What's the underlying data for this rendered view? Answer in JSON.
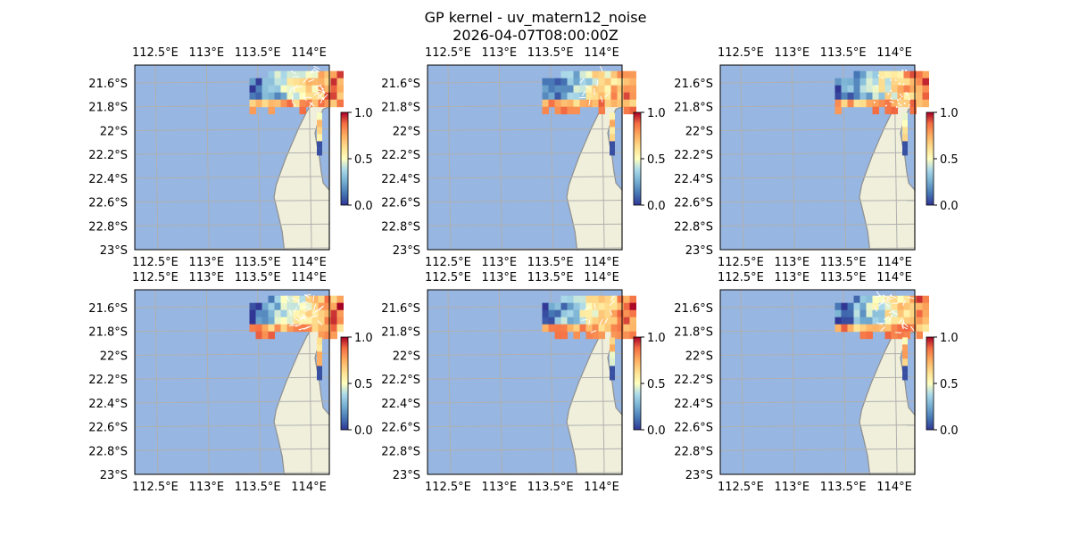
{
  "figure": {
    "title": "GP kernel - uv_matern12_noise",
    "subtitle": "2026-04-07T08:00:00Z"
  },
  "colors": {
    "ocean": "#97b6e1",
    "land": "#efefdb",
    "coast": "#8f8f8f",
    "grid": "#b0b0b0",
    "frame": "#000000",
    "arrow": "#ffffff"
  },
  "chart_data": [
    {
      "type": "heatmap",
      "panel": 1,
      "xlim": [
        112.3,
        114.2
      ],
      "ylim": [
        -23.0,
        -21.45
      ],
      "x_ticks": [
        "112.5°E",
        "113°E",
        "113.5°E",
        "114°E"
      ],
      "x_tick_values": [
        112.5,
        113.0,
        113.5,
        114.0
      ],
      "y_ticks": [
        "21.6°S",
        "21.8°S",
        "22°S",
        "22.2°S",
        "22.4°S",
        "22.6°S",
        "22.8°S",
        "23°S"
      ],
      "y_tick_values": [
        -21.6,
        -21.8,
        -22.0,
        -22.2,
        -22.4,
        -22.6,
        -22.8,
        -23.0
      ],
      "colorbar": {
        "range": [
          0.0,
          1.0
        ],
        "ticks": [
          "0.0",
          "0.5",
          "1.0"
        ],
        "colormap": "RdYlBu_r"
      },
      "vectors": "dense"
    },
    {
      "type": "heatmap",
      "panel": 2,
      "xlim": [
        112.3,
        114.2
      ],
      "ylim": [
        -23.0,
        -21.45
      ],
      "x_ticks": [
        "112.5°E",
        "113°E",
        "113.5°E",
        "114°E"
      ],
      "x_tick_values": [
        112.5,
        113.0,
        113.5,
        114.0
      ],
      "y_ticks": [
        "21.6°S",
        "21.8°S",
        "22°S",
        "22.2°S",
        "22.4°S",
        "22.6°S",
        "22.8°S",
        "23°S"
      ],
      "y_tick_values": [
        -21.6,
        -21.8,
        -22.0,
        -22.2,
        -22.4,
        -22.6,
        -22.8,
        -23.0
      ],
      "colorbar": {
        "range": [
          0.0,
          1.0
        ],
        "ticks": [
          "0.0",
          "0.5",
          "1.0"
        ],
        "colormap": "RdYlBu_r"
      },
      "vectors": "sparse"
    },
    {
      "type": "heatmap",
      "panel": 3,
      "xlim": [
        112.3,
        114.2
      ],
      "ylim": [
        -23.0,
        -21.45
      ],
      "x_ticks": [
        "112.5°E",
        "113°E",
        "113.5°E",
        "114°E"
      ],
      "x_tick_values": [
        112.5,
        113.0,
        113.5,
        114.0
      ],
      "y_ticks": [
        "21.6°S",
        "21.8°S",
        "22°S",
        "22.2°S",
        "22.4°S",
        "22.6°S",
        "22.8°S",
        "23°S"
      ],
      "y_tick_values": [
        -21.6,
        -21.8,
        -22.0,
        -22.2,
        -22.4,
        -22.6,
        -22.8,
        -23.0
      ],
      "colorbar": {
        "range": [
          0.0,
          1.0
        ],
        "ticks": [
          "0.0",
          "0.5",
          "1.0"
        ],
        "colormap": "RdYlBu_r"
      },
      "vectors": "dots"
    },
    {
      "type": "heatmap",
      "panel": 4,
      "xlim": [
        112.3,
        114.2
      ],
      "ylim": [
        -23.0,
        -21.45
      ],
      "x_ticks": [
        "112.5°E",
        "113°E",
        "113.5°E",
        "114°E"
      ],
      "x_tick_values": [
        112.5,
        113.0,
        113.5,
        114.0
      ],
      "y_ticks": [
        "21.6°S",
        "21.8°S",
        "22°S",
        "22.2°S",
        "22.4°S",
        "22.6°S",
        "22.8°S",
        "23°S"
      ],
      "y_tick_values": [
        -21.6,
        -21.8,
        -22.0,
        -22.2,
        -22.4,
        -22.6,
        -22.8,
        -23.0
      ],
      "colorbar": {
        "range": [
          0.0,
          1.0
        ],
        "ticks": [
          "0.0",
          "0.5",
          "1.0"
        ],
        "colormap": "RdYlBu_r"
      },
      "vectors": "dense"
    },
    {
      "type": "heatmap",
      "panel": 5,
      "xlim": [
        112.3,
        114.2
      ],
      "ylim": [
        -23.0,
        -21.45
      ],
      "x_ticks": [
        "112.5°E",
        "113°E",
        "113.5°E",
        "114°E"
      ],
      "x_tick_values": [
        112.5,
        113.0,
        113.5,
        114.0
      ],
      "y_ticks": [
        "21.6°S",
        "21.8°S",
        "22°S",
        "22.2°S",
        "22.4°S",
        "22.6°S",
        "22.8°S",
        "23°S"
      ],
      "y_tick_values": [
        -21.6,
        -21.8,
        -22.0,
        -22.2,
        -22.4,
        -22.6,
        -22.8,
        -23.0
      ],
      "colorbar": {
        "range": [
          0.0,
          1.0
        ],
        "ticks": [
          "0.0",
          "0.5",
          "1.0"
        ],
        "colormap": "RdYlBu_r"
      },
      "vectors": "sparse"
    },
    {
      "type": "heatmap",
      "panel": 6,
      "xlim": [
        112.3,
        114.2
      ],
      "ylim": [
        -23.0,
        -21.45
      ],
      "x_ticks": [
        "112.5°E",
        "113°E",
        "113.5°E",
        "114°E"
      ],
      "x_tick_values": [
        112.5,
        113.0,
        113.5,
        114.0
      ],
      "y_ticks": [
        "21.6°S",
        "21.8°S",
        "22°S",
        "22.2°S",
        "22.4°S",
        "22.6°S",
        "22.8°S",
        "23°S"
      ],
      "y_tick_values": [
        -21.6,
        -21.8,
        -22.0,
        -22.2,
        -22.4,
        -22.6,
        -22.8,
        -23.0
      ],
      "colorbar": {
        "range": [
          0.0,
          1.0
        ],
        "ticks": [
          "0.0",
          "0.5",
          "1.0"
        ],
        "colormap": "RdYlBu_r"
      },
      "vectors": "dense"
    }
  ]
}
